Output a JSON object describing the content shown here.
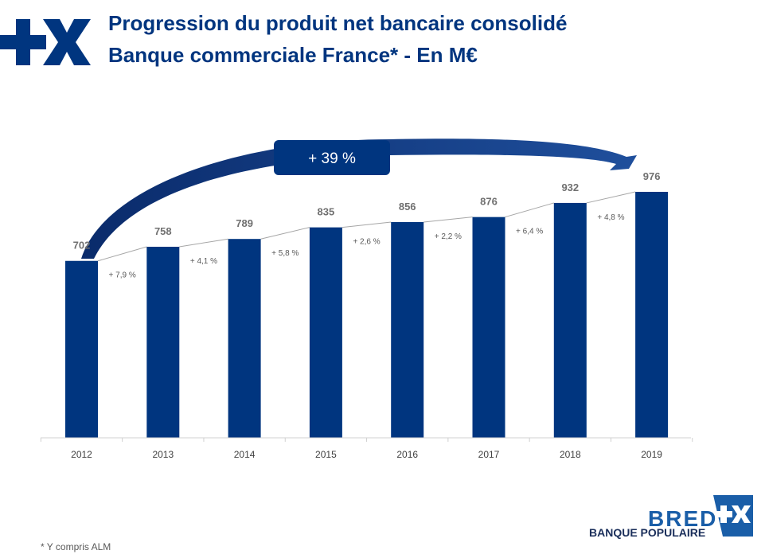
{
  "header": {
    "title": "Progression du produit net bancaire consolidé",
    "subtitle": "Banque commerciale France* - En M€"
  },
  "colors": {
    "brand": "#00357f",
    "bar": "#00357f",
    "line": "#a6a6a6",
    "badge": "#00357f"
  },
  "icons": {
    "top_logo": "plus-x-logo-icon",
    "brand_logo": "bred-plus-x-logo-icon"
  },
  "chart_data": {
    "type": "bar",
    "categories": [
      "2012",
      "2013",
      "2014",
      "2015",
      "2016",
      "2017",
      "2018",
      "2019"
    ],
    "values": [
      702,
      758,
      789,
      835,
      856,
      876,
      932,
      976
    ],
    "growth_labels": [
      "+ 7,9 %",
      "+ 4,1 %",
      "+ 5,8 %",
      "+ 2,6 %",
      "+ 2,2 %",
      "+ 6,4 %",
      "+ 4,8 %"
    ],
    "total_growth_label": "+ 39 %",
    "title": "Progression du produit net bancaire consolidé",
    "xlabel": "",
    "ylabel": "",
    "ylim": [
      0,
      976
    ],
    "grid": false,
    "legend": "none"
  },
  "footnote": "* Y compris ALM",
  "brand": {
    "name": "BRED",
    "sub": "BANQUE POPULAIRE"
  }
}
